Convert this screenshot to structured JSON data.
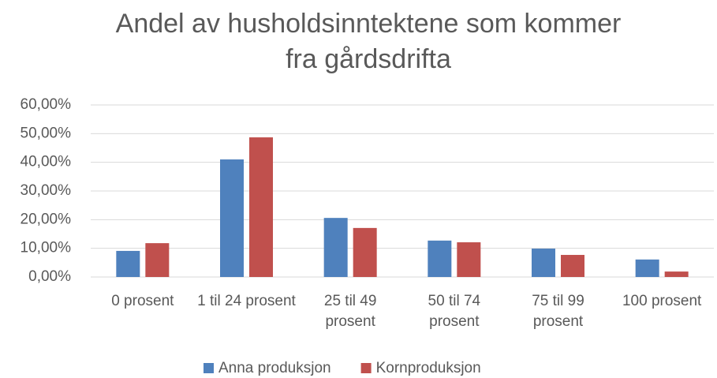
{
  "chart_data": {
    "type": "bar",
    "title": [
      "Andel av husholdsinntektene som kommer",
      "fra gårdsdrifta"
    ],
    "categories": [
      "0 prosent",
      "1 til 24 prosent",
      "25 til 49 prosent",
      "50 til 74 prosent",
      "75 til 99 prosent",
      "100 prosent"
    ],
    "series": [
      {
        "name": "Anna produksjon",
        "color": "#4f81bd",
        "values": [
          9.1,
          41,
          20.6,
          12.7,
          9.9,
          6.1
        ]
      },
      {
        "name": "Kornproduksjon",
        "color": "#c0504d",
        "values": [
          11.8,
          48.7,
          17.1,
          12.1,
          7.7,
          1.9
        ]
      }
    ],
    "ylim": [
      0,
      60
    ],
    "yticks": [
      {
        "value": 0,
        "label": "0,00%"
      },
      {
        "value": 10,
        "label": "10,00%"
      },
      {
        "value": 20,
        "label": "20,00%"
      },
      {
        "value": 30,
        "label": "30,00%"
      },
      {
        "value": 40,
        "label": "40,00%"
      },
      {
        "value": 50,
        "label": "50,00%"
      },
      {
        "value": 60,
        "label": "60,00%"
      }
    ],
    "grid": true,
    "legend": "bottom"
  }
}
